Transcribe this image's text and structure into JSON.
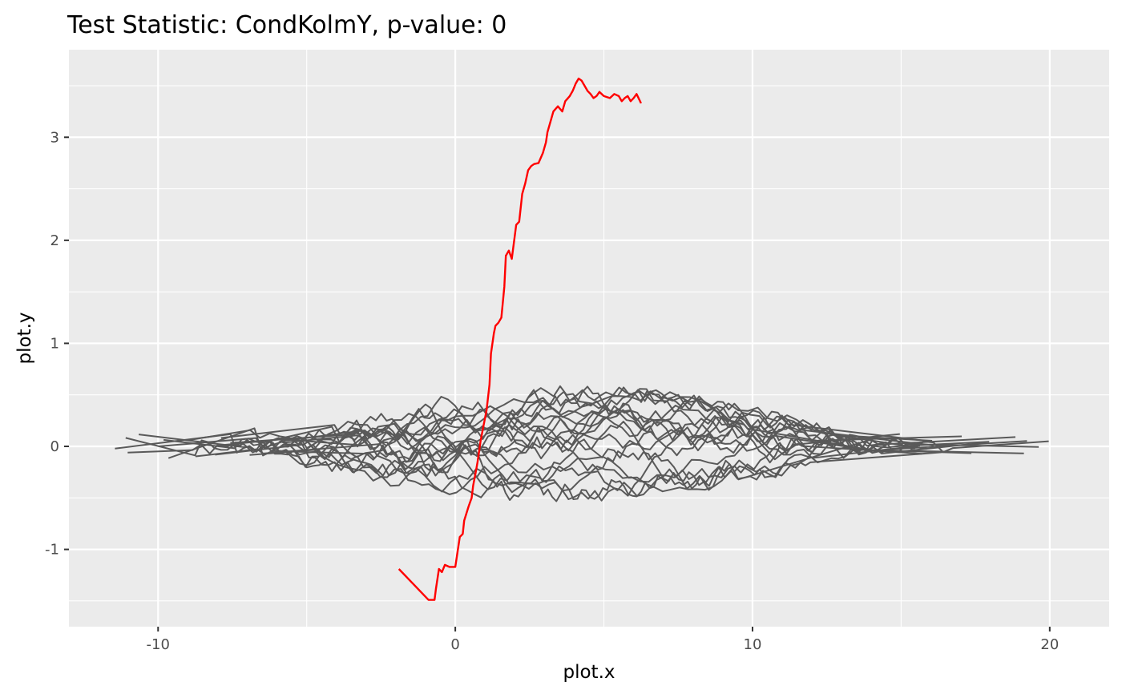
{
  "chart_data": {
    "type": "line",
    "title": "Test Statistic: CondKolmY, p-value: 0",
    "xlabel": "plot.x",
    "ylabel": "plot.y",
    "xlim": [
      -13,
      22
    ],
    "ylim": [
      -1.75,
      3.85
    ],
    "x_ticks": [
      -10,
      0,
      10,
      20
    ],
    "x_tick_labels": [
      "-10",
      "0",
      "10",
      "20"
    ],
    "y_ticks": [
      -1,
      0,
      1,
      2,
      3
    ],
    "y_tick_labels": [
      "-1",
      "0",
      "1",
      "2",
      "3"
    ],
    "grid": true,
    "legend": "none",
    "colors": {
      "panel_background": "#ebebeb",
      "grid": "#ffffff",
      "observed": "#ff0000",
      "simulated": "#595959"
    },
    "observed_series": {
      "color": "#ff0000",
      "x": [
        -1.9,
        -0.9,
        -0.7,
        -0.65,
        -0.55,
        -0.45,
        -0.35,
        -0.2,
        0,
        0.15,
        0.25,
        0.3,
        0.45,
        0.55,
        0.6,
        0.7,
        0.75,
        0.85,
        0.95,
        1.05,
        1.15,
        1.2,
        1.3,
        1.35,
        1.45,
        1.55,
        1.65,
        1.7,
        1.8,
        1.9,
        2.05,
        2.15,
        2.25,
        2.35,
        2.45,
        2.55,
        2.65,
        2.8,
        2.95,
        3.05,
        3.1,
        3.2,
        3.3,
        3.45,
        3.6,
        3.7,
        3.85,
        3.95,
        4.05,
        4.15,
        4.25,
        4.35,
        4.45,
        4.55,
        4.65,
        4.75,
        4.85,
        5.0,
        5.2,
        5.35,
        5.5,
        5.6,
        5.7,
        5.8,
        5.9,
        6.0,
        6.1,
        6.25
      ],
      "y": [
        -1.19,
        -1.49,
        -1.49,
        -1.38,
        -1.19,
        -1.22,
        -1.15,
        -1.17,
        -1.17,
        -0.88,
        -0.85,
        -0.72,
        -0.58,
        -0.5,
        -0.38,
        -0.23,
        -0.15,
        0.05,
        0.2,
        0.35,
        0.6,
        0.9,
        1.1,
        1.17,
        1.2,
        1.25,
        1.55,
        1.85,
        1.9,
        1.82,
        2.15,
        2.18,
        2.45,
        2.55,
        2.68,
        2.72,
        2.74,
        2.75,
        2.85,
        2.95,
        3.05,
        3.15,
        3.25,
        3.3,
        3.25,
        3.35,
        3.4,
        3.45,
        3.52,
        3.57,
        3.55,
        3.5,
        3.45,
        3.42,
        3.38,
        3.4,
        3.44,
        3.4,
        3.38,
        3.42,
        3.4,
        3.35,
        3.38,
        3.4,
        3.35,
        3.38,
        3.42,
        3.33
      ]
    },
    "simulated_series": {
      "color": "#595959",
      "count": 20
    }
  }
}
